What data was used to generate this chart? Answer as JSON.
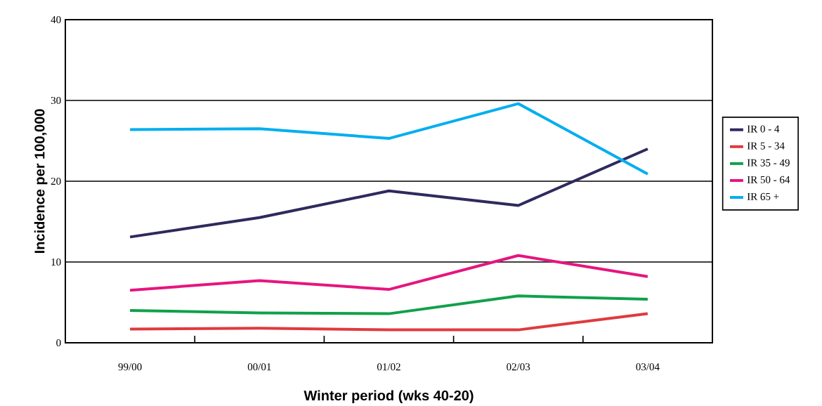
{
  "chart_data": {
    "type": "line",
    "xlabel": "Winter period (wks 40-20)",
    "ylabel": "Incidence per 100,000",
    "categories": [
      "99/00",
      "00/01",
      "01/02",
      "02/03",
      "03/04"
    ],
    "series": [
      {
        "name": "IR 0 - 4",
        "color": "#2e2a5e",
        "values": [
          13.1,
          15.5,
          18.8,
          17.0,
          24.0
        ]
      },
      {
        "name": "IR 5 - 34",
        "color": "#e03a3e",
        "values": [
          1.7,
          1.8,
          1.6,
          1.6,
          3.6
        ]
      },
      {
        "name": "IR 35 - 49",
        "color": "#10a14a",
        "values": [
          4.0,
          3.7,
          3.6,
          5.8,
          5.4
        ]
      },
      {
        "name": "IR 50 - 64",
        "color": "#e6157f",
        "values": [
          6.5,
          7.7,
          6.6,
          10.8,
          8.2
        ]
      },
      {
        "name": "IR 65 +",
        "color": "#00aeef",
        "values": [
          26.4,
          26.5,
          25.3,
          29.6,
          20.9
        ]
      }
    ],
    "ylim": [
      0,
      40
    ],
    "yticks": [
      0,
      10,
      20,
      30,
      40
    ],
    "grid": "y",
    "legend": "right",
    "marker": "none",
    "line_style": "solid"
  }
}
